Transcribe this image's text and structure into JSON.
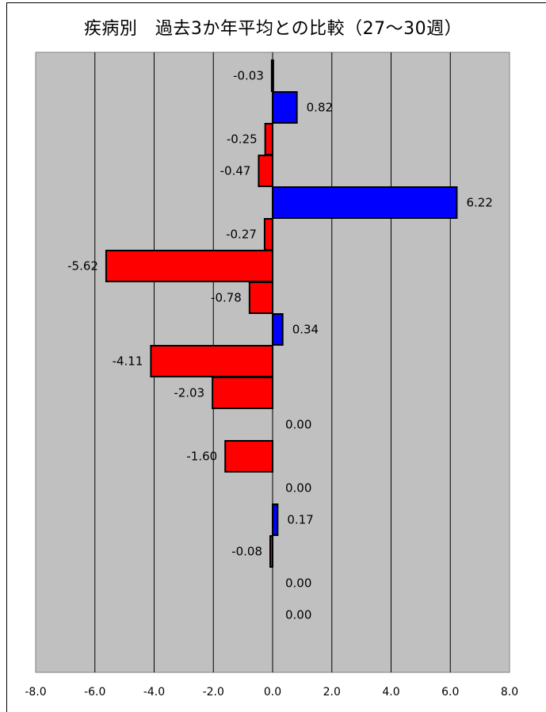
{
  "title": "疾病別　過去3か年平均との比較（27～30週）",
  "chart_data": {
    "type": "bar",
    "orientation": "horizontal",
    "title": "疾病別　過去3か年平均との比較（27～30週）",
    "xlim": [
      -8.0,
      8.0
    ],
    "x_ticks": [
      "-8.0",
      "-6.0",
      "-4.0",
      "-2.0",
      "0.0",
      "2.0",
      "4.0",
      "6.0",
      "8.0"
    ],
    "grid": true,
    "values": [
      -0.03,
      0.82,
      -0.25,
      -0.47,
      6.22,
      -0.27,
      -5.62,
      -0.78,
      0.34,
      -4.11,
      -2.03,
      0.0,
      -1.6,
      0.0,
      0.17,
      -0.08,
      0.0,
      0.0
    ],
    "labels": [
      "-0.03",
      "0.82",
      "-0.25",
      "-0.47",
      "6.22",
      "-0.27",
      "-5.62",
      "-0.78",
      "0.34",
      "-4.11",
      "-2.03",
      "0.00",
      "-1.60",
      "0.00",
      "0.17",
      "-0.08",
      "0.00",
      "0.00"
    ],
    "colors": {
      "positive": "#0000ff",
      "negative": "#ff0000",
      "plot_background": "#c0c0c0"
    }
  }
}
